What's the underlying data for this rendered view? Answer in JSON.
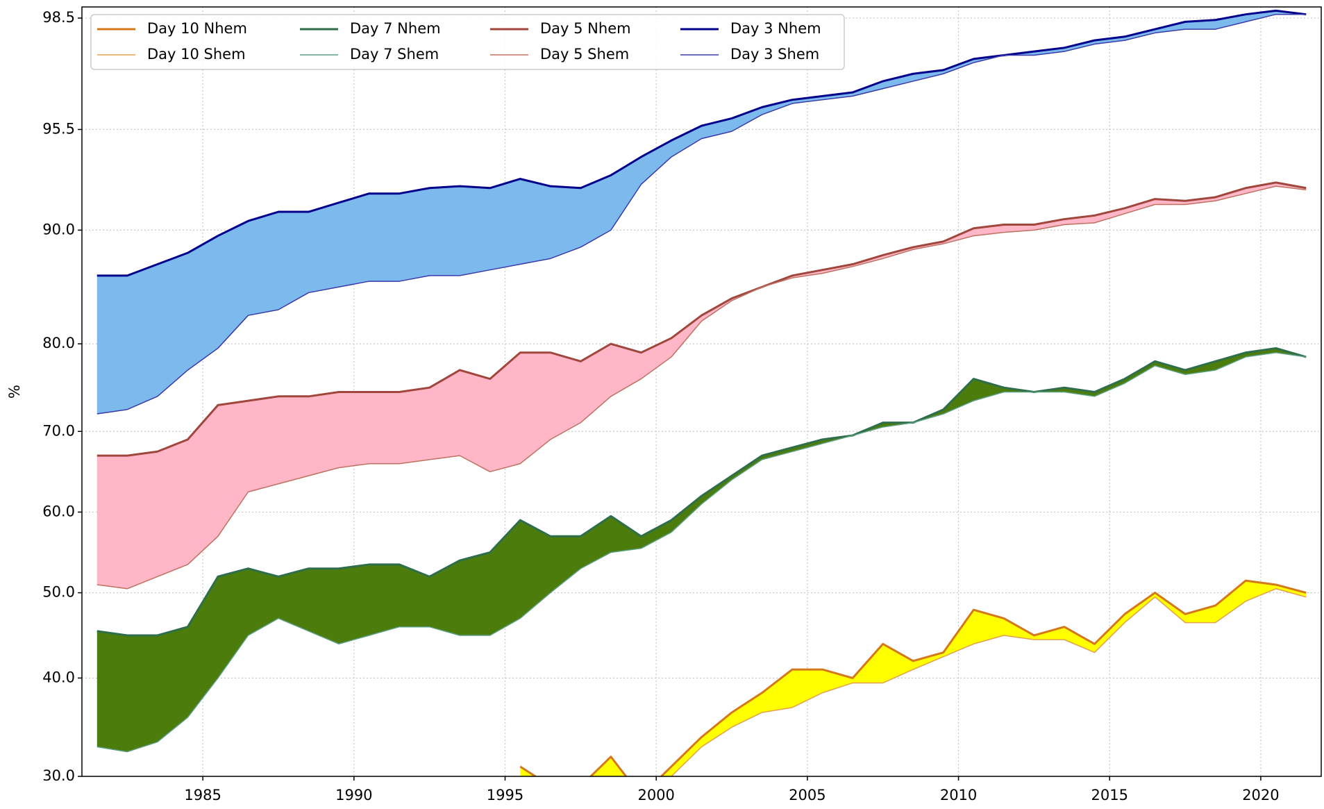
{
  "chart_data": {
    "type": "line",
    "y_label": "%",
    "x": [
      1981.5,
      1982.5,
      1983.5,
      1984.5,
      1985.5,
      1986.5,
      1987.5,
      1988.5,
      1989.5,
      1990.5,
      1991.5,
      1992.5,
      1993.5,
      1994.5,
      1995.5,
      1996.5,
      1997.5,
      1998.5,
      1999.5,
      2000.5,
      2001.5,
      2002.5,
      2003.5,
      2004.5,
      2005.5,
      2006.5,
      2007.5,
      2008.5,
      2009.5,
      2010.5,
      2011.5,
      2012.5,
      2013.5,
      2014.5,
      2015.5,
      2016.5,
      2017.5,
      2018.5,
      2019.5,
      2020.5,
      2021.5
    ],
    "series": [
      {
        "name": "Day 10 Nhem",
        "color": "#d4781c",
        "width": 3,
        "values": [
          null,
          null,
          null,
          null,
          null,
          null,
          null,
          null,
          null,
          null,
          null,
          null,
          null,
          null,
          31,
          29,
          29,
          32,
          28,
          31,
          34,
          36.5,
          38.5,
          41,
          41,
          40,
          44,
          42,
          43,
          48,
          47,
          45,
          46,
          44,
          47.5,
          50,
          47.5,
          48.5,
          51.5,
          51,
          50
        ]
      },
      {
        "name": "Day 10 Shem",
        "color": "#e3a04a",
        "width": 1.5,
        "values": [
          null,
          null,
          null,
          null,
          null,
          null,
          null,
          null,
          null,
          null,
          null,
          null,
          null,
          null,
          29,
          28,
          28,
          29,
          28,
          30,
          33,
          35,
          36.5,
          37,
          38.5,
          39.5,
          39.5,
          41,
          42.5,
          44,
          45,
          44.5,
          44.5,
          43,
          46.5,
          49.5,
          46.5,
          46.5,
          49,
          50.5,
          49.5
        ]
      },
      {
        "name": "Day 7 Nhem",
        "color": "#2e6e4a",
        "width": 3,
        "values": [
          45.5,
          45,
          45,
          46,
          52,
          53,
          52,
          53,
          53,
          53.5,
          53.5,
          52,
          54,
          55,
          59,
          57,
          57,
          59.5,
          57,
          59,
          62,
          64.5,
          67,
          68,
          69,
          69.5,
          71,
          71,
          72.5,
          76,
          75,
          74.5,
          75,
          74.5,
          76,
          78,
          77,
          78,
          79,
          79.5,
          78.5
        ]
      },
      {
        "name": "Day 7 Shem",
        "color": "#5a9e80",
        "width": 1.5,
        "values": [
          33,
          32.5,
          33.5,
          36,
          40,
          45,
          47,
          45.5,
          44,
          45,
          46,
          46,
          45,
          45,
          47,
          50,
          53,
          55,
          55.5,
          57.5,
          61,
          64,
          66.5,
          67.5,
          68.5,
          69.5,
          70.5,
          71,
          72,
          73.5,
          74.5,
          74.5,
          74.5,
          74,
          75.5,
          77.5,
          76.5,
          77,
          78.5,
          79,
          78.5
        ]
      },
      {
        "name": "Day 5 Nhem",
        "color": "#a0463c",
        "width": 3,
        "values": [
          67,
          67,
          67.5,
          69,
          73,
          73.5,
          74,
          74,
          74.5,
          74.5,
          74.5,
          75,
          77,
          76,
          79,
          79,
          78,
          80,
          79,
          80.5,
          82.5,
          84,
          85,
          86,
          86.5,
          87,
          87.8,
          88.5,
          89,
          90.1,
          90.3,
          90.3,
          90.6,
          90.8,
          91.2,
          91.7,
          91.6,
          91.8,
          92.3,
          92.6,
          92.3
        ]
      },
      {
        "name": "Day 5 Shem",
        "color": "#c07060",
        "width": 1.5,
        "values": [
          51,
          50.5,
          52,
          53.5,
          57,
          62.5,
          63.5,
          64.5,
          65.5,
          66,
          66,
          66.5,
          67,
          65,
          66,
          69,
          71,
          74,
          76,
          78.5,
          82,
          83.8,
          85,
          85.8,
          86.2,
          86.8,
          87.5,
          88.3,
          88.8,
          89.5,
          89.8,
          90,
          90.3,
          90.4,
          90.9,
          91.4,
          91.4,
          91.6,
          92,
          92.4,
          92.2
        ]
      },
      {
        "name": "Day 3 Nhem",
        "color": "#00008b",
        "width": 3,
        "values": [
          86,
          86,
          87,
          88,
          89.5,
          90.5,
          91,
          91,
          91.5,
          92,
          92,
          92.3,
          92.4,
          92.3,
          92.8,
          92.4,
          92.3,
          93,
          94,
          94.9,
          95.6,
          95.8,
          96.1,
          96.3,
          96.4,
          96.5,
          96.8,
          97,
          97.1,
          97.4,
          97.5,
          97.6,
          97.7,
          97.9,
          98,
          98.2,
          98.4,
          98.45,
          98.6,
          98.7,
          98.6
        ]
      },
      {
        "name": "Day 3 Shem",
        "color": "#3a3aaa",
        "width": 1.5,
        "values": [
          72,
          72.5,
          74,
          77,
          79.5,
          82.5,
          83,
          84.5,
          85,
          85.5,
          85.5,
          86,
          86,
          86.5,
          87,
          87.5,
          88.5,
          90,
          92.5,
          94,
          95,
          95.4,
          95.9,
          96.2,
          96.3,
          96.4,
          96.6,
          96.8,
          97,
          97.3,
          97.5,
          97.5,
          97.6,
          97.8,
          97.9,
          98.1,
          98.2,
          98.2,
          98.4,
          98.6,
          98.6
        ]
      }
    ],
    "fills": [
      {
        "between": [
          0,
          1
        ],
        "color": "#ffff00"
      },
      {
        "between": [
          2,
          3
        ],
        "color": "#4c7c0c"
      },
      {
        "between": [
          4,
          5
        ],
        "color": "#ffb6c6"
      },
      {
        "between": [
          6,
          7
        ],
        "color": "#7cb9ec"
      }
    ],
    "xlim": [
      1981,
      2022
    ],
    "xticks": [
      1985,
      1990,
      1995,
      2000,
      2005,
      2010,
      2015,
      2020
    ],
    "ylim": [
      30,
      98.8
    ],
    "yticks": [
      {
        "value": 30,
        "label": "30.0"
      },
      {
        "value": 40,
        "label": "40.0"
      },
      {
        "value": 50,
        "label": "50.0"
      },
      {
        "value": 60,
        "label": "60.0"
      },
      {
        "value": 70,
        "label": "70.0"
      },
      {
        "value": 80,
        "label": "80.0"
      },
      {
        "value": 90,
        "label": "90.0"
      },
      95.5,
      98.5
    ],
    "grid": true,
    "legend": "upper left"
  }
}
